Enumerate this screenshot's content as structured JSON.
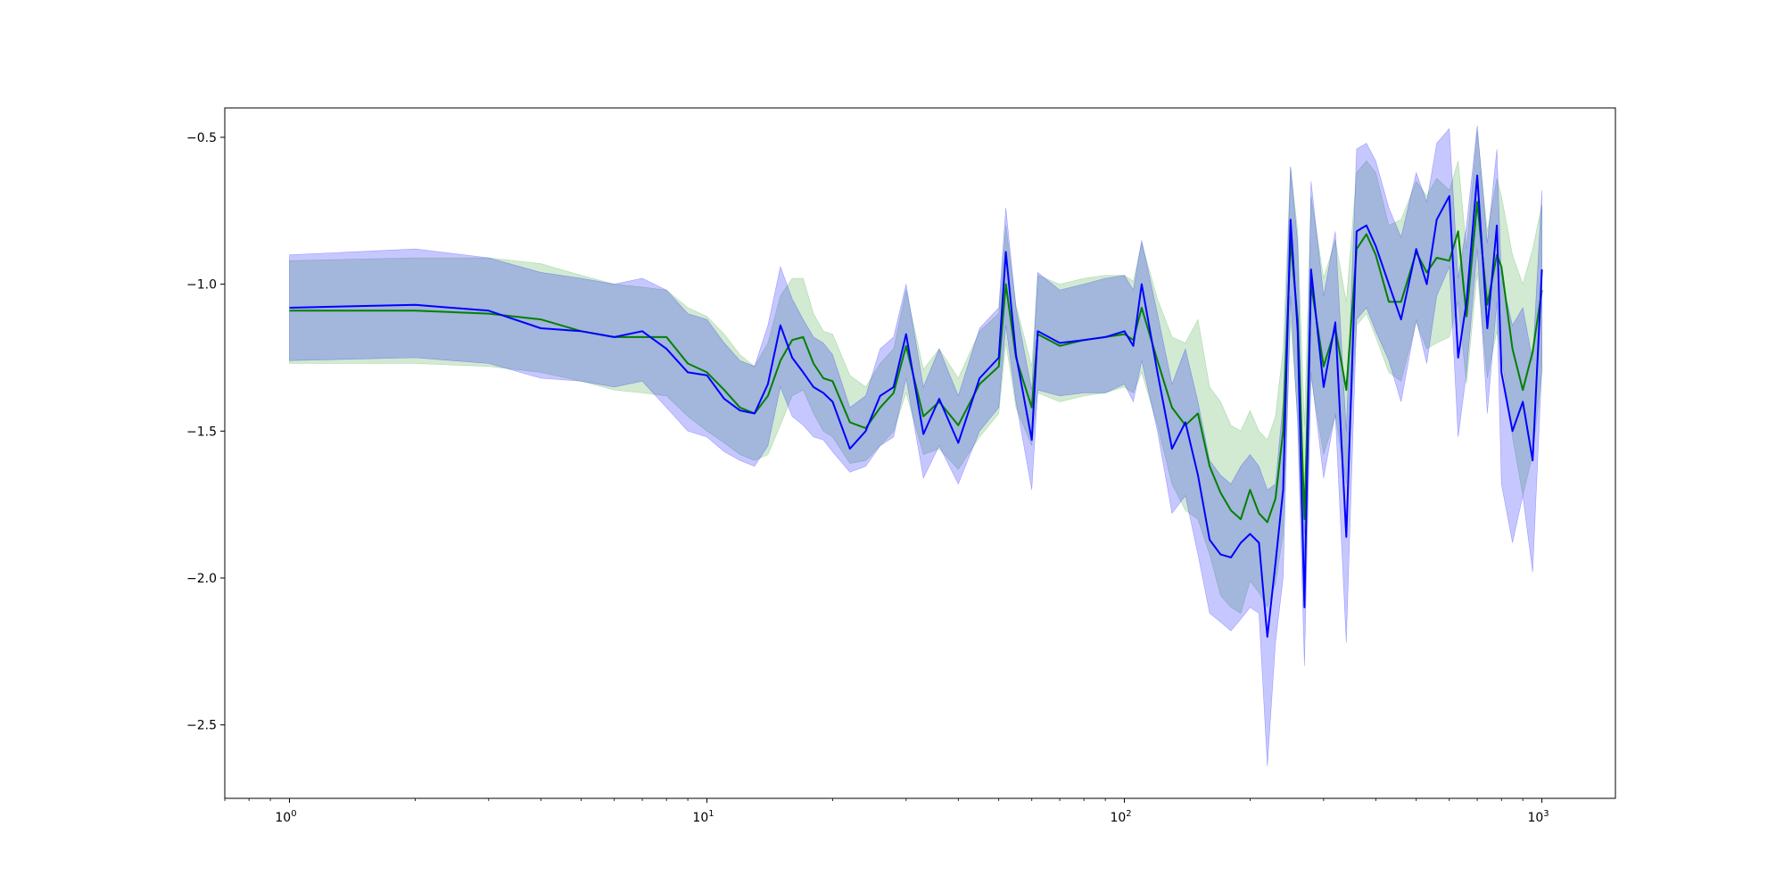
{
  "chart_data": {
    "type": "line",
    "title": "",
    "xlabel": "",
    "ylabel": "",
    "xscale": "log",
    "xlim": [
      0.7,
      1500
    ],
    "ylim": [
      -2.75,
      -0.4
    ],
    "grid": false,
    "legend": "none",
    "x_ticks": [
      {
        "base": "10",
        "exp": "0",
        "value": 1
      },
      {
        "base": "10",
        "exp": "1",
        "value": 10
      },
      {
        "base": "10",
        "exp": "2",
        "value": 100
      },
      {
        "base": "10",
        "exp": "3",
        "value": 1000
      }
    ],
    "y_ticks": [
      {
        "label": "−0.5",
        "value": -0.5
      },
      {
        "label": "−1.0",
        "value": -1.0
      },
      {
        "label": "−1.5",
        "value": -1.5
      },
      {
        "label": "−2.0",
        "value": -2.0
      },
      {
        "label": "−2.5",
        "value": -2.5
      }
    ],
    "series": [
      {
        "color": "#008000",
        "band_color": "#2ca02c",
        "x": [
          1,
          2,
          3,
          4,
          5,
          6,
          7,
          8,
          9,
          10,
          11,
          12,
          13,
          14,
          15,
          16,
          17,
          18,
          19,
          20,
          22,
          24,
          26,
          28,
          30,
          33,
          36,
          40,
          45,
          50,
          52,
          55,
          60,
          62,
          70,
          80,
          90,
          100,
          105,
          110,
          120,
          130,
          140,
          150,
          160,
          170,
          180,
          190,
          200,
          210,
          220,
          230,
          240,
          250,
          260,
          270,
          280,
          300,
          320,
          340,
          360,
          380,
          400,
          430,
          460,
          500,
          530,
          560,
          600,
          630,
          660,
          700,
          740,
          780,
          800,
          850,
          900,
          950,
          1000
        ],
        "y": [
          -1.09,
          -1.09,
          -1.1,
          -1.12,
          -1.16,
          -1.18,
          -1.18,
          -1.18,
          -1.27,
          -1.3,
          -1.36,
          -1.42,
          -1.44,
          -1.38,
          -1.26,
          -1.19,
          -1.18,
          -1.27,
          -1.32,
          -1.33,
          -1.47,
          -1.49,
          -1.42,
          -1.37,
          -1.21,
          -1.45,
          -1.4,
          -1.48,
          -1.34,
          -1.28,
          -1.0,
          -1.25,
          -1.42,
          -1.17,
          -1.21,
          -1.19,
          -1.18,
          -1.17,
          -1.19,
          -1.08,
          -1.26,
          -1.42,
          -1.48,
          -1.44,
          -1.62,
          -1.71,
          -1.77,
          -1.8,
          -1.7,
          -1.78,
          -1.81,
          -1.73,
          -1.5,
          -0.85,
          -1.12,
          -1.8,
          -1.0,
          -1.28,
          -1.15,
          -1.36,
          -0.88,
          -0.83,
          -0.9,
          -1.06,
          -1.06,
          -0.89,
          -0.96,
          -0.91,
          -0.92,
          -0.82,
          -1.11,
          -0.72,
          -1.07,
          -0.9,
          -0.94,
          -1.22,
          -1.36,
          -1.23,
          -1.02
        ],
        "lower": [
          -1.27,
          -1.27,
          -1.28,
          -1.3,
          -1.33,
          -1.36,
          -1.37,
          -1.38,
          -1.45,
          -1.5,
          -1.54,
          -1.58,
          -1.6,
          -1.58,
          -1.48,
          -1.38,
          -1.36,
          -1.44,
          -1.5,
          -1.52,
          -1.61,
          -1.6,
          -1.55,
          -1.5,
          -1.37,
          -1.58,
          -1.56,
          -1.63,
          -1.52,
          -1.44,
          -1.2,
          -1.42,
          -1.55,
          -1.37,
          -1.4,
          -1.38,
          -1.37,
          -1.35,
          -1.37,
          -1.3,
          -1.48,
          -1.68,
          -1.77,
          -1.8,
          -1.92,
          -2.06,
          -2.1,
          -2.12,
          -2.01,
          -2.05,
          -2.1,
          -2.02,
          -1.85,
          -1.12,
          -1.45,
          -2.1,
          -1.32,
          -1.58,
          -1.45,
          -1.68,
          -1.14,
          -1.1,
          -1.18,
          -1.3,
          -1.33,
          -1.13,
          -1.22,
          -1.2,
          -1.18,
          -1.06,
          -1.34,
          -0.96,
          -1.32,
          -1.16,
          -1.24,
          -1.52,
          -1.72,
          -1.58,
          -1.3
        ],
        "upper": [
          -0.92,
          -0.91,
          -0.91,
          -0.93,
          -0.97,
          -1.0,
          -1.01,
          -1.02,
          -1.08,
          -1.11,
          -1.17,
          -1.24,
          -1.28,
          -1.2,
          -1.04,
          -0.98,
          -0.98,
          -1.1,
          -1.16,
          -1.17,
          -1.31,
          -1.35,
          -1.27,
          -1.22,
          -1.02,
          -1.29,
          -1.22,
          -1.32,
          -1.16,
          -1.1,
          -0.8,
          -1.07,
          -1.28,
          -0.97,
          -1.0,
          -0.98,
          -0.97,
          -0.97,
          -0.99,
          -0.86,
          -1.05,
          -1.18,
          -1.2,
          -1.12,
          -1.35,
          -1.4,
          -1.48,
          -1.5,
          -1.43,
          -1.5,
          -1.53,
          -1.45,
          -1.22,
          -0.6,
          -0.82,
          -1.48,
          -0.7,
          -0.98,
          -0.85,
          -1.06,
          -0.62,
          -0.58,
          -0.62,
          -0.8,
          -0.78,
          -0.65,
          -0.7,
          -0.64,
          -0.68,
          -0.58,
          -0.88,
          -0.48,
          -0.82,
          -0.64,
          -0.7,
          -0.9,
          -1.0,
          -0.88,
          -0.73
        ]
      },
      {
        "color": "#0000ff",
        "band_color": "#0000ff",
        "x": [
          1,
          2,
          3,
          4,
          5,
          6,
          7,
          8,
          9,
          10,
          11,
          12,
          13,
          14,
          15,
          16,
          17,
          18,
          19,
          20,
          22,
          24,
          26,
          28,
          30,
          33,
          36,
          40,
          45,
          50,
          52,
          55,
          60,
          62,
          70,
          80,
          90,
          100,
          105,
          110,
          120,
          130,
          140,
          150,
          160,
          170,
          180,
          190,
          200,
          210,
          220,
          230,
          240,
          250,
          260,
          270,
          280,
          300,
          320,
          340,
          360,
          380,
          400,
          430,
          460,
          500,
          530,
          560,
          600,
          630,
          660,
          700,
          740,
          780,
          800,
          850,
          900,
          950,
          1000
        ],
        "y": [
          -1.08,
          -1.07,
          -1.09,
          -1.15,
          -1.16,
          -1.18,
          -1.16,
          -1.22,
          -1.3,
          -1.31,
          -1.39,
          -1.43,
          -1.44,
          -1.34,
          -1.14,
          -1.25,
          -1.3,
          -1.35,
          -1.37,
          -1.4,
          -1.56,
          -1.5,
          -1.38,
          -1.35,
          -1.17,
          -1.51,
          -1.39,
          -1.54,
          -1.32,
          -1.25,
          -0.89,
          -1.24,
          -1.53,
          -1.16,
          -1.2,
          -1.19,
          -1.18,
          -1.16,
          -1.21,
          -1.0,
          -1.3,
          -1.56,
          -1.47,
          -1.65,
          -1.87,
          -1.92,
          -1.93,
          -1.88,
          -1.85,
          -1.88,
          -2.2,
          -1.95,
          -1.7,
          -0.78,
          -1.16,
          -2.1,
          -0.95,
          -1.35,
          -1.13,
          -1.86,
          -0.82,
          -0.8,
          -0.87,
          -1.0,
          -1.12,
          -0.88,
          -1.0,
          -0.78,
          -0.7,
          -1.25,
          -1.06,
          -0.63,
          -1.15,
          -0.8,
          -1.3,
          -1.5,
          -1.4,
          -1.6,
          -0.95
        ],
        "lower": [
          -1.26,
          -1.25,
          -1.27,
          -1.32,
          -1.33,
          -1.35,
          -1.33,
          -1.42,
          -1.5,
          -1.52,
          -1.57,
          -1.6,
          -1.62,
          -1.55,
          -1.35,
          -1.45,
          -1.48,
          -1.52,
          -1.53,
          -1.57,
          -1.64,
          -1.62,
          -1.55,
          -1.52,
          -1.32,
          -1.66,
          -1.55,
          -1.68,
          -1.5,
          -1.42,
          -1.14,
          -1.4,
          -1.7,
          -1.36,
          -1.38,
          -1.37,
          -1.37,
          -1.34,
          -1.4,
          -1.26,
          -1.5,
          -1.78,
          -1.72,
          -1.92,
          -2.12,
          -2.15,
          -2.18,
          -2.14,
          -2.1,
          -2.12,
          -2.64,
          -2.22,
          -2.0,
          -1.04,
          -1.48,
          -2.3,
          -1.3,
          -1.66,
          -1.44,
          -2.22,
          -1.12,
          -1.08,
          -1.16,
          -1.26,
          -1.4,
          -1.12,
          -1.27,
          -1.04,
          -0.94,
          -1.52,
          -1.3,
          -0.88,
          -1.44,
          -1.06,
          -1.68,
          -1.88,
          -1.72,
          -1.98,
          -1.28
        ],
        "upper": [
          -0.9,
          -0.88,
          -0.91,
          -0.96,
          -0.98,
          -1.0,
          -0.98,
          -1.02,
          -1.1,
          -1.12,
          -1.2,
          -1.26,
          -1.28,
          -1.14,
          -0.94,
          -1.05,
          -1.12,
          -1.18,
          -1.2,
          -1.24,
          -1.42,
          -1.38,
          -1.22,
          -1.18,
          -1.0,
          -1.35,
          -1.22,
          -1.38,
          -1.15,
          -1.08,
          -0.74,
          -1.08,
          -1.36,
          -0.96,
          -1.02,
          -1.0,
          -0.98,
          -0.97,
          -1.02,
          -0.85,
          -1.1,
          -1.34,
          -1.22,
          -1.4,
          -1.6,
          -1.65,
          -1.68,
          -1.62,
          -1.58,
          -1.62,
          -1.7,
          -1.68,
          -1.4,
          -0.6,
          -0.86,
          -1.85,
          -0.65,
          -1.04,
          -0.82,
          -1.5,
          -0.54,
          -0.52,
          -0.58,
          -0.74,
          -0.84,
          -0.62,
          -0.72,
          -0.52,
          -0.47,
          -0.98,
          -0.8,
          -0.46,
          -0.86,
          -0.54,
          -0.98,
          -1.14,
          -1.08,
          -1.26,
          -0.68
        ]
      }
    ]
  }
}
